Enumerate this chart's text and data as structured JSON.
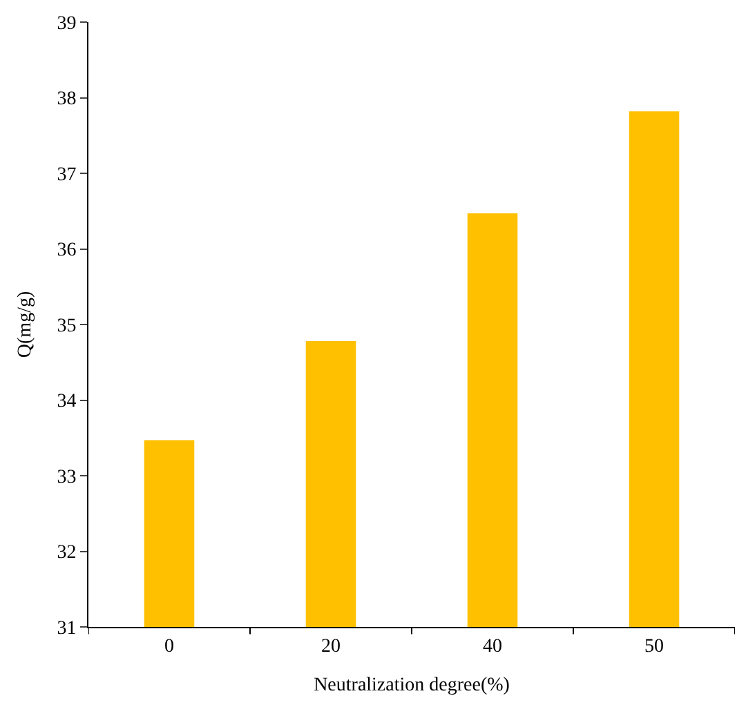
{
  "chart_data": {
    "type": "bar",
    "xlabel": "Neutralization degree(%)",
    "ylabel": "Q(mg/g)",
    "categories": [
      "0",
      "20",
      "40",
      "50"
    ],
    "values": [
      33.47,
      34.78,
      36.47,
      37.82
    ],
    "color": "#ffc000",
    "ylim": [
      31,
      39
    ],
    "yticks": [
      31,
      32,
      33,
      34,
      35,
      36,
      37,
      38,
      39
    ]
  }
}
